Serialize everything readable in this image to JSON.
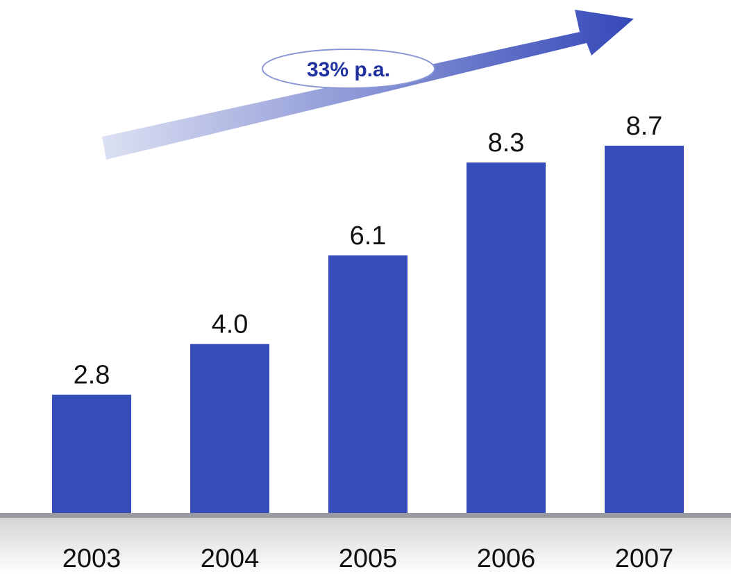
{
  "chart_data": {
    "type": "bar",
    "categories": [
      "2003",
      "2004",
      "2005",
      "2006",
      "2007"
    ],
    "values": [
      2.8,
      4.0,
      6.1,
      8.3,
      8.7
    ],
    "value_labels": [
      "2.8",
      "4.0",
      "6.1",
      "8.3",
      "8.7"
    ],
    "title": "",
    "xlabel": "",
    "ylabel": "",
    "ylim": [
      0,
      11
    ],
    "grid": false,
    "legend": "none",
    "annotation": {
      "type": "growth-arrow",
      "label": "33% p.a."
    },
    "colors": {
      "bar": "#344DB8",
      "arrow_start": "#DCE0F2",
      "arrow_end": "#3448B8",
      "baseline": "#9A9AA2",
      "badge_border": "#8A96D6",
      "badge_text": "#2233A0"
    }
  }
}
